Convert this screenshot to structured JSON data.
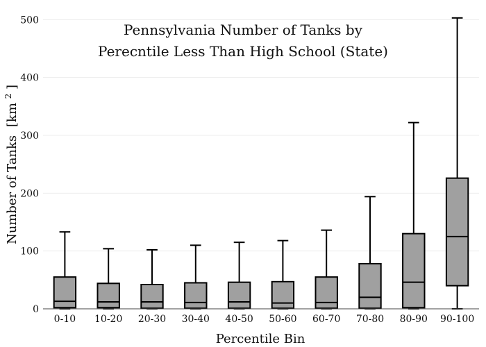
{
  "chart_data": {
    "type": "box",
    "title_lines": [
      "Pennsylvania Number of Tanks by",
      "Perecntile Less Than High School (State)"
    ],
    "xlabel": "Percentile Bin",
    "ylabel": "Number of Tanks",
    "ylabel_unit": "[km",
    "ylabel_unit_sup": "2",
    "ylabel_unit_close": "]",
    "ylim": [
      0,
      510
    ],
    "yticks": [
      0,
      100,
      200,
      300,
      400,
      500
    ],
    "grid": true,
    "box_color": "#a0a0a0",
    "categories": [
      "0-10",
      "10-20",
      "20-30",
      "30-40",
      "40-50",
      "50-60",
      "60-70",
      "70-80",
      "80-90",
      "90-100"
    ],
    "boxes": [
      {
        "min": 0,
        "q1": 2,
        "median": 13,
        "q3": 55,
        "max": 133
      },
      {
        "min": 0,
        "q1": 2,
        "median": 12,
        "q3": 44,
        "max": 104
      },
      {
        "min": 0,
        "q1": 1,
        "median": 12,
        "q3": 42,
        "max": 102
      },
      {
        "min": 0,
        "q1": 1,
        "median": 11,
        "q3": 45,
        "max": 110
      },
      {
        "min": 0,
        "q1": 1,
        "median": 12,
        "q3": 46,
        "max": 115
      },
      {
        "min": 0,
        "q1": 1,
        "median": 10,
        "q3": 47,
        "max": 118
      },
      {
        "min": 0,
        "q1": 1,
        "median": 11,
        "q3": 55,
        "max": 136
      },
      {
        "min": 0,
        "q1": 1,
        "median": 20,
        "q3": 78,
        "max": 194
      },
      {
        "min": 0,
        "q1": 2,
        "median": 46,
        "q3": 130,
        "max": 322
      },
      {
        "min": 0,
        "q1": 40,
        "median": 125,
        "q3": 226,
        "max": 503
      }
    ]
  }
}
